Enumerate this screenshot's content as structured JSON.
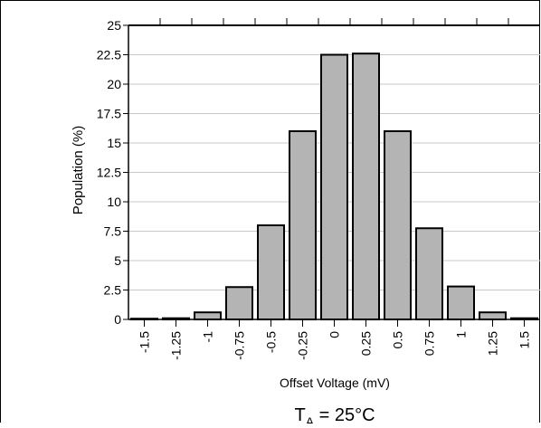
{
  "chart_data": {
    "type": "bar",
    "title": "",
    "xlabel": "Offset Voltage (mV)",
    "ylabel": "Population (%)",
    "condition": {
      "main": "T",
      "subscript": "A",
      "suffix": " = 25°C"
    },
    "categories": [
      "-1.5",
      "-1.25",
      "-1",
      "-0.75",
      "-0.5",
      "-0.25",
      "0",
      "0.25",
      "0.5",
      "0.75",
      "1",
      "1.25",
      "1.5"
    ],
    "values": [
      0.05,
      0.1,
      0.6,
      2.75,
      8.0,
      16.0,
      22.5,
      22.6,
      16.0,
      7.75,
      2.8,
      0.6,
      0.1
    ],
    "ylim": [
      0,
      25
    ],
    "yticks": [
      "0",
      "2.5",
      "5",
      "7.5",
      "10",
      "12.5",
      "15",
      "17.5",
      "20",
      "22.5",
      "25"
    ],
    "grid": true,
    "bar_color": "#b4b4b4",
    "grid_color": "#c8c8c8"
  }
}
